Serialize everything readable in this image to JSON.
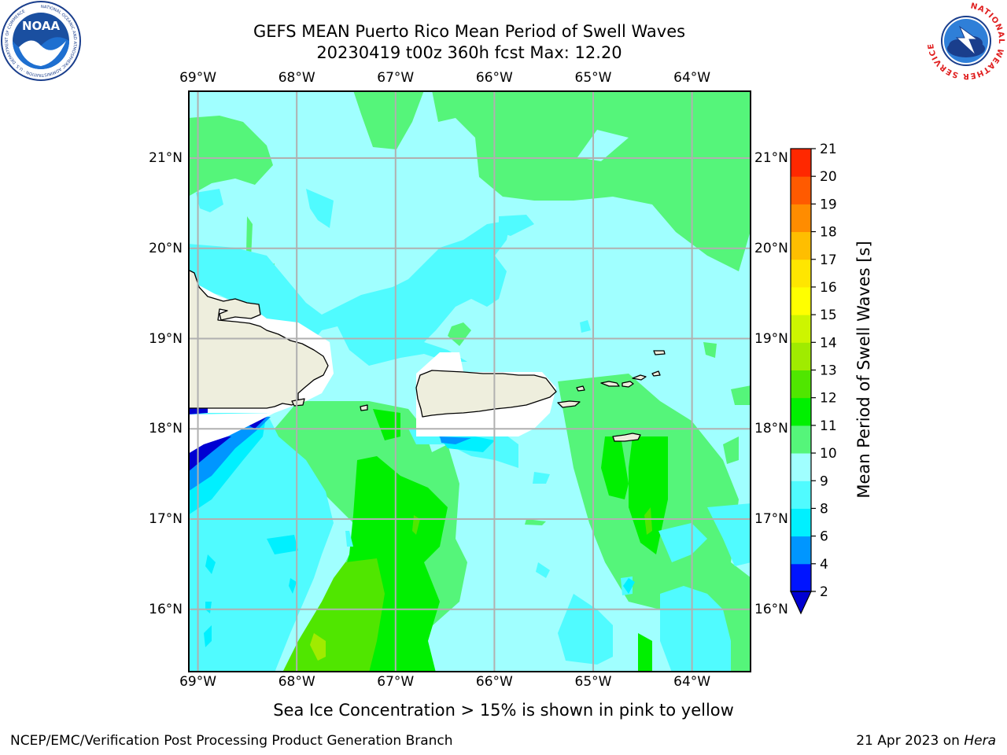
{
  "header": {
    "title_line1": "GEFS MEAN Puerto Rico Mean Period of Swell Waves",
    "title_line2": "20230419 t00z 360h fcst   Max: 12.20"
  },
  "map": {
    "lon_ticks": [
      "69°W",
      "68°W",
      "67°W",
      "66°W",
      "65°W",
      "64°W"
    ],
    "lat_ticks": [
      "21°N",
      "20°N",
      "19°N",
      "18°N",
      "17°N",
      "16°N"
    ],
    "lon_range": [
      -69.1,
      -63.4
    ],
    "lat_range": [
      15.3,
      21.75
    ],
    "colors": {
      "land": "#eeeedd",
      "coast": "#000000",
      "grid": "#b0b0b0",
      "mask": "#ffffff"
    }
  },
  "colorbar": {
    "label": "Mean Period of Swell Waves [s]",
    "ticks": [
      "2",
      "4",
      "6",
      "8",
      "9",
      "10",
      "11",
      "12",
      "13",
      "14",
      "15",
      "16",
      "17",
      "18",
      "19",
      "20",
      "21"
    ],
    "levels": [
      2,
      4,
      6,
      8,
      9,
      10,
      11,
      12,
      13,
      14,
      15,
      16,
      17,
      18,
      19,
      20,
      21
    ],
    "colors": [
      "#0014ff",
      "#0096ff",
      "#00f0ff",
      "#50fbff",
      "#a0ffff",
      "#55f57a",
      "#00f000",
      "#50e600",
      "#a0eb00",
      "#cdf500",
      "#ffff00",
      "#ffe600",
      "#ffbe00",
      "#ff8c00",
      "#ff5a00",
      "#ff2800",
      "#ff0000"
    ],
    "under_color": "#0000d2"
  },
  "subtitle": "Sea Ice Concentration > 15% is shown in pink to yellow",
  "footer": {
    "left": "NCEP/EMC/Verification Post Processing Product Generation Branch",
    "right_date": "21 Apr 2023 on ",
    "right_host": "Hera"
  },
  "logos": {
    "noaa_text": "NOAA",
    "nws_text": "NATIONAL WEATHER SERVICE",
    "noaa_ring_text": "NATIONAL OCEANIC AND ATMOSPHERIC ADMINISTRATION · U.S. DEPARTMENT OF COMMERCE"
  }
}
